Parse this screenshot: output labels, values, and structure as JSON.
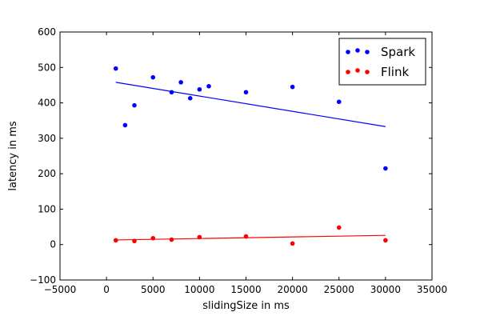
{
  "chart_data": {
    "type": "scatter",
    "xlabel": "slidingSize in ms",
    "ylabel": "latency in ms",
    "xlim": [
      -5000,
      35000
    ],
    "ylim": [
      -100,
      600
    ],
    "xticks": [
      -5000,
      0,
      5000,
      10000,
      15000,
      20000,
      25000,
      30000,
      35000
    ],
    "yticks": [
      -100,
      0,
      100,
      200,
      300,
      400,
      500,
      600
    ],
    "grid": false,
    "legend_position": "top-right",
    "series": [
      {
        "name": "Spark",
        "color": "#0000ff",
        "x": [
          1000,
          2000,
          3000,
          5000,
          7000,
          8000,
          9000,
          10000,
          11000,
          15000,
          20000,
          25000,
          30000
        ],
        "y": [
          497,
          337,
          393,
          472,
          430,
          458,
          413,
          438,
          447,
          430,
          445,
          403,
          215
        ],
        "fit_line": {
          "x": [
            1000,
            30000
          ],
          "y": [
            458,
            333
          ]
        }
      },
      {
        "name": "Flink",
        "color": "#ff0000",
        "x": [
          1000,
          3000,
          5000,
          7000,
          10000,
          15000,
          20000,
          25000,
          30000
        ],
        "y": [
          12,
          10,
          18,
          14,
          21,
          23,
          3,
          48,
          12
        ],
        "fit_line": {
          "x": [
            1000,
            30000
          ],
          "y": [
            13,
            26
          ]
        }
      }
    ]
  }
}
